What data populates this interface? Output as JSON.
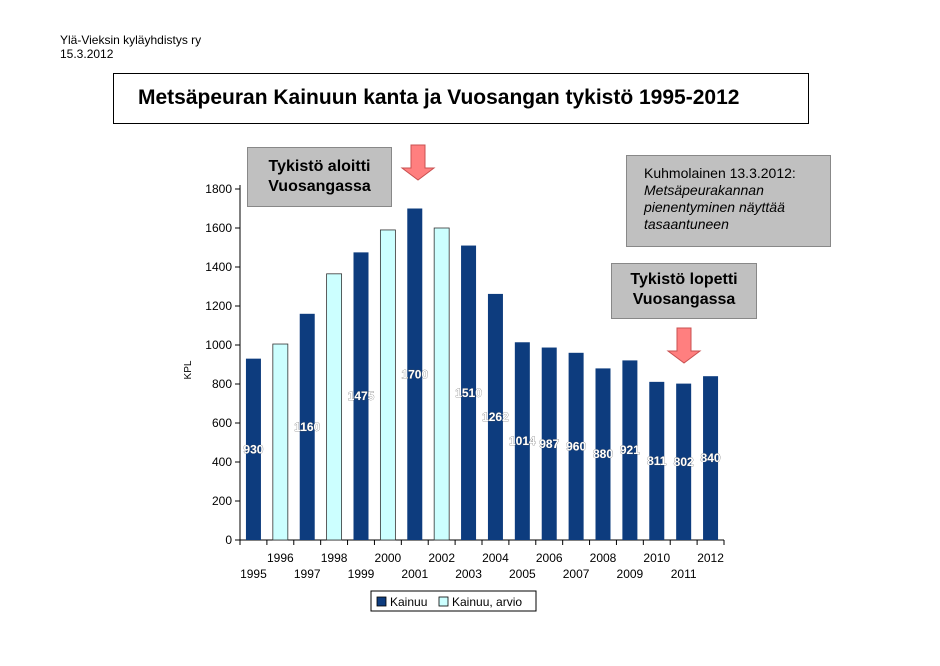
{
  "header": {
    "org_name": "Ylä-Vieksin kyläyhdistys ry",
    "date": "15.3.2012"
  },
  "chart_data": {
    "type": "bar",
    "title": "Metsäpeuran Kainuun kanta ja Vuosangan tykistö 1995-2012",
    "ylabel": "KPL",
    "xlabel": "",
    "ylim": [
      0,
      1800
    ],
    "yticks": [
      0,
      200,
      400,
      600,
      800,
      1000,
      1200,
      1400,
      1600,
      1800
    ],
    "categories": [
      "1995",
      "1996",
      "1997",
      "1998",
      "1999",
      "2000",
      "2001",
      "2002",
      "2003",
      "2004",
      "2005",
      "2006",
      "2007",
      "2008",
      "2009",
      "2010",
      "2011",
      "2012"
    ],
    "values": [
      930,
      1005,
      1160,
      1365,
      1475,
      1590,
      1700,
      1600,
      1510,
      1262,
      1014,
      987,
      960,
      880,
      921,
      811,
      802,
      840
    ],
    "data_labels": [
      "930",
      "",
      "1160",
      "",
      "1475",
      "",
      "1700",
      "",
      "1510",
      "1262",
      "1014",
      "987",
      "960",
      "880",
      "921",
      "811",
      "802",
      "840"
    ],
    "series_type": [
      "Kainuu",
      "Kainuu, arvio",
      "Kainuu",
      "Kainuu, arvio",
      "Kainuu",
      "Kainuu, arvio",
      "Kainuu",
      "Kainuu, arvio",
      "Kainuu",
      "Kainuu",
      "Kainuu",
      "Kainuu",
      "Kainuu",
      "Kainuu",
      "Kainuu",
      "Kainuu",
      "Kainuu",
      "Kainuu"
    ],
    "legend": [
      {
        "name": "Kainuu",
        "color": "#0d3c7e"
      },
      {
        "name": "Kainuu, arvio",
        "color": "#ccffff"
      }
    ],
    "legend_position": "bottom",
    "grid": false
  },
  "annotations": {
    "start_line1": "Tykistö aloitti",
    "start_line2": "Vuosangassa",
    "end_line1": "Tykistö lopetti",
    "end_line2": "Vuosangassa",
    "note_line1": "Kuhmolainen 13.3.2012:",
    "note_line2": "Metsäpeurakannan",
    "note_line3": "pienentyminen näyttää",
    "note_line4": "tasaantuneen",
    "arrow_color": "#ff7f7f"
  }
}
